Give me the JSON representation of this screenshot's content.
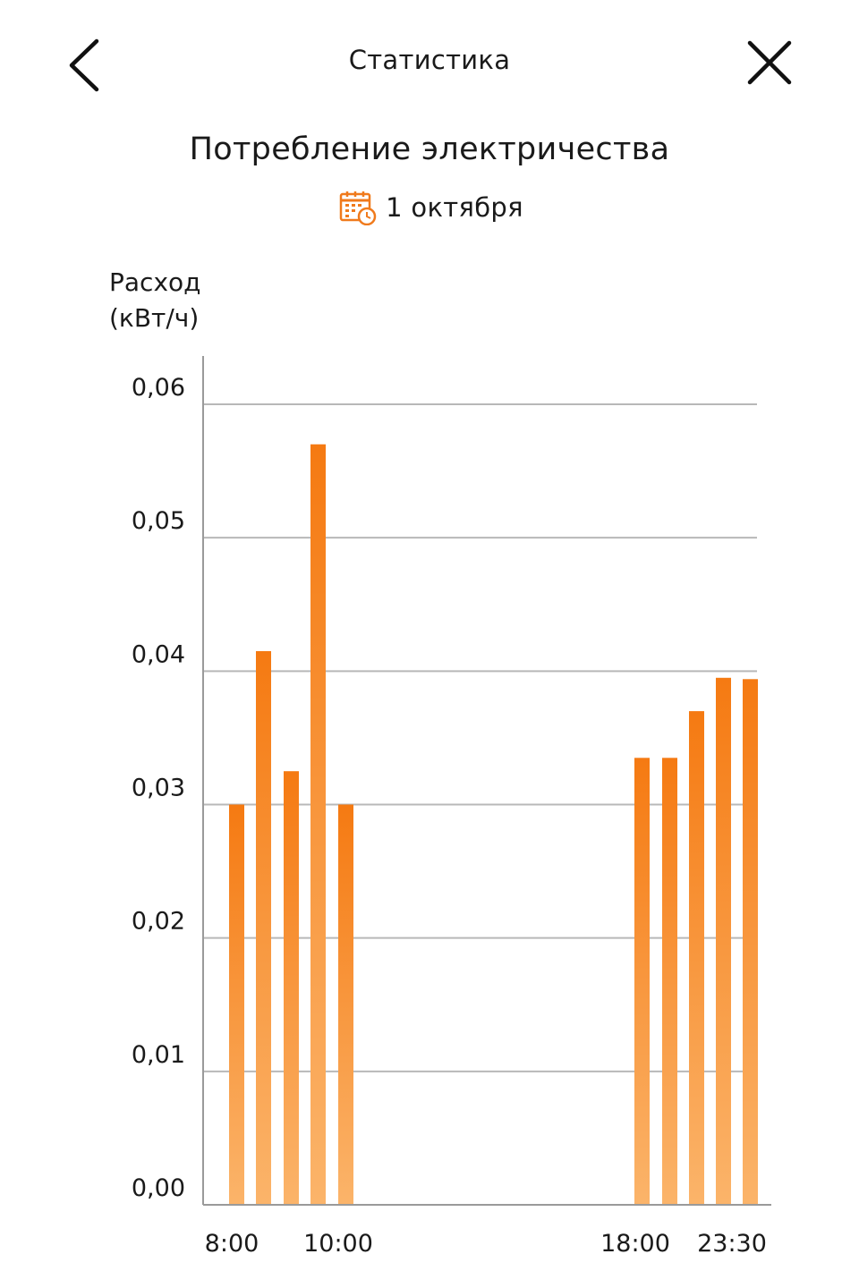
{
  "header": {
    "title": "Статистика"
  },
  "subheader": {
    "title": "Потребление электричества",
    "date": "1 октября"
  },
  "icons": {
    "back": "chevron-left-icon",
    "close": "close-icon",
    "calendar": "calendar-clock-icon"
  },
  "colors": {
    "accent": "#f07a1c",
    "bar_top": "#f57a12",
    "bar_bottom": "#fbb46a",
    "grid": "#b8b8b8",
    "axis": "#9a9a9a"
  },
  "chart_data": {
    "type": "bar",
    "ylabel_line1": "Расход",
    "ylabel_line2": "(кВт/ч)",
    "ylim": [
      0,
      0.06
    ],
    "yticks": [
      {
        "value": 0.0,
        "label": "0,00"
      },
      {
        "value": 0.01,
        "label": "0,01"
      },
      {
        "value": 0.02,
        "label": "0,02"
      },
      {
        "value": 0.03,
        "label": "0,03"
      },
      {
        "value": 0.04,
        "label": "0,04"
      },
      {
        "value": 0.05,
        "label": "0,05"
      },
      {
        "value": 0.06,
        "label": "0,06"
      }
    ],
    "xticks": [
      "8:00",
      "10:00",
      "18:00",
      "23:30"
    ],
    "grid": true,
    "values": [
      0.03,
      0.0415,
      0.0325,
      0.057,
      0.03,
      0.0335,
      0.0335,
      0.037,
      0.0395,
      0.0394
    ]
  }
}
